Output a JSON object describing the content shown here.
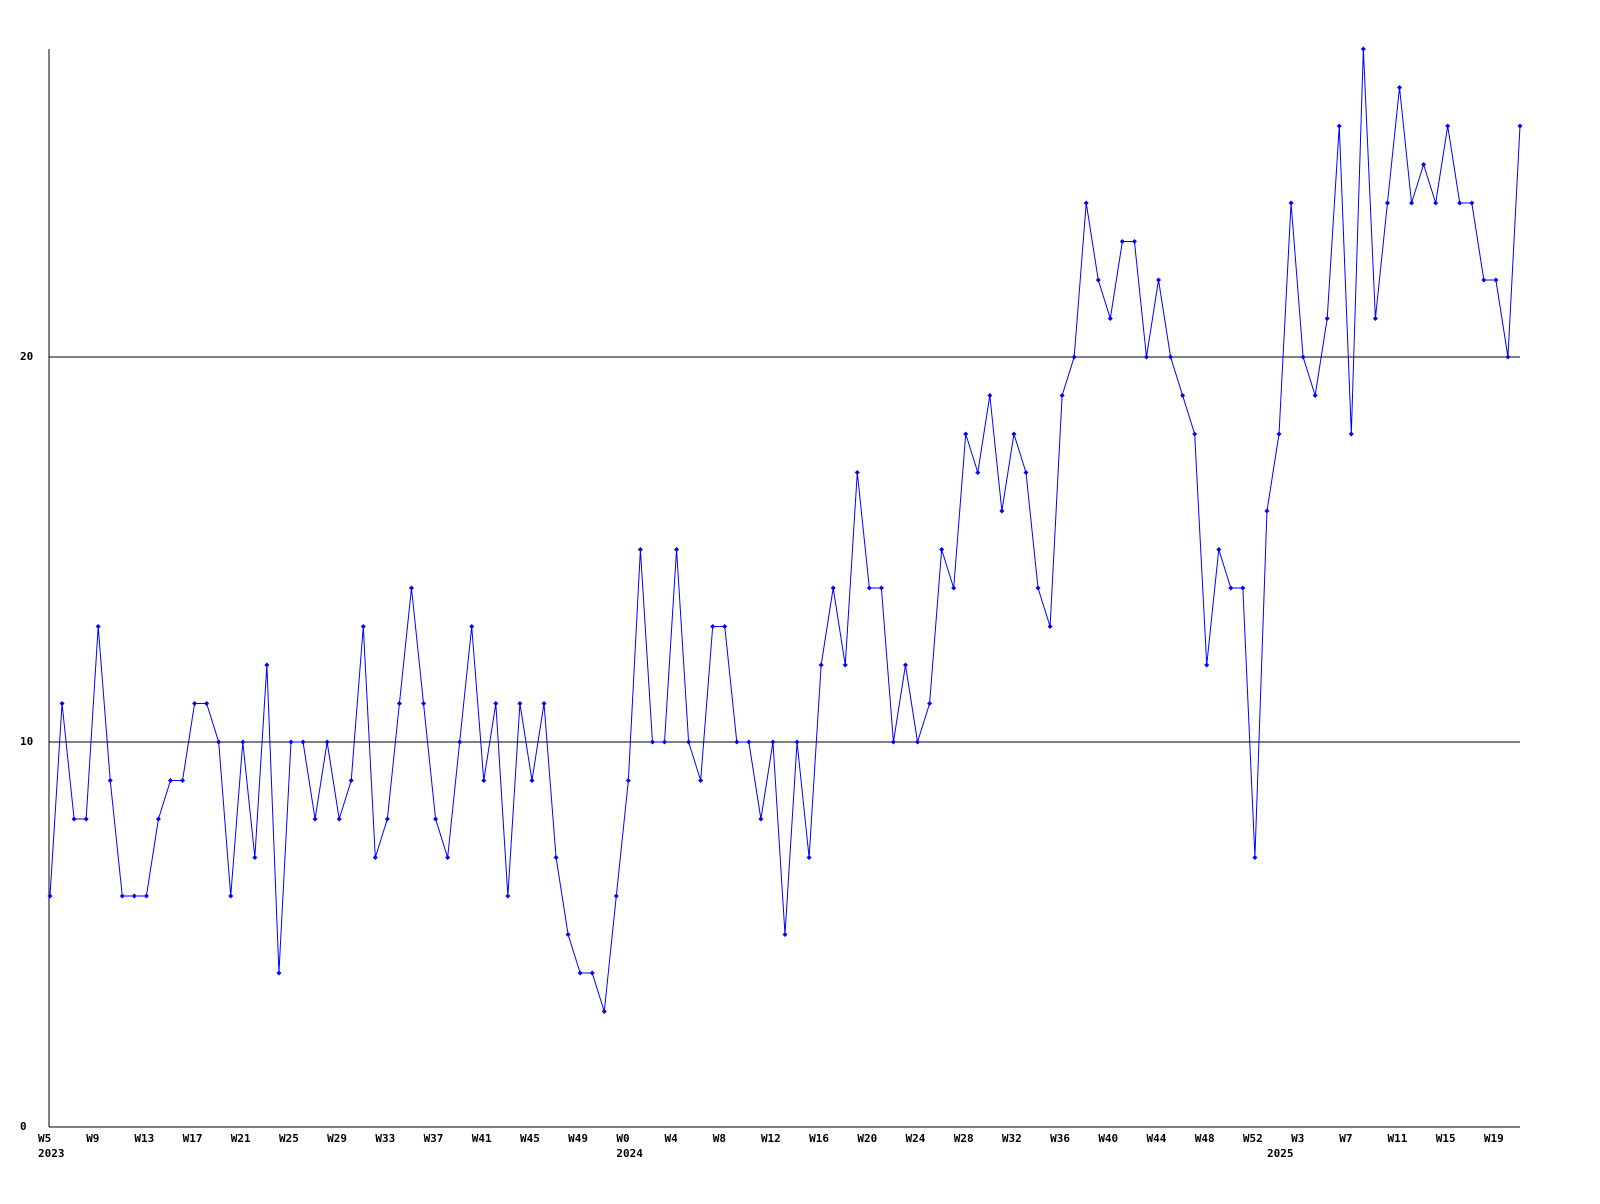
{
  "chart_data": {
    "type": "line",
    "categories": [
      "W5",
      null,
      null,
      null,
      "W9",
      null,
      null,
      null,
      "W13",
      null,
      null,
      null,
      "W17",
      null,
      null,
      null,
      "W21",
      null,
      null,
      null,
      "W25",
      null,
      null,
      null,
      "W29",
      null,
      null,
      null,
      "W33",
      null,
      null,
      null,
      "W37",
      null,
      null,
      null,
      "W41",
      null,
      null,
      null,
      "W45",
      null,
      null,
      null,
      "W49",
      null,
      null,
      null,
      "W0",
      null,
      null,
      null,
      "W4",
      null,
      null,
      null,
      "W8",
      null,
      null,
      null,
      "W12",
      null,
      null,
      null,
      "W16",
      null,
      null,
      null,
      "W20",
      null,
      null,
      null,
      "W24",
      null,
      null,
      null,
      "W28",
      null,
      null,
      null,
      "W32",
      null,
      null,
      null,
      "W36",
      null,
      null,
      null,
      "W40",
      null,
      null,
      null,
      "W44",
      null,
      null,
      null,
      "W48",
      null,
      null,
      null,
      "W52",
      null,
      null,
      null,
      "W3",
      null,
      null,
      null,
      "W7",
      null,
      null,
      null,
      "W11",
      null,
      null,
      null,
      "W15",
      null,
      null,
      null,
      "W19",
      null,
      null
    ],
    "category_groups": [
      "2023",
      null,
      null,
      null,
      null,
      null,
      null,
      null,
      null,
      null,
      null,
      null,
      null,
      null,
      null,
      null,
      null,
      null,
      null,
      null,
      null,
      null,
      null,
      null,
      null,
      null,
      null,
      null,
      null,
      null,
      null,
      null,
      null,
      null,
      null,
      null,
      null,
      null,
      null,
      null,
      null,
      null,
      null,
      null,
      null,
      null,
      null,
      null,
      "2024",
      null,
      null,
      null,
      null,
      null,
      null,
      null,
      null,
      null,
      null,
      null,
      null,
      null,
      null,
      null,
      null,
      null,
      null,
      null,
      null,
      null,
      null,
      null,
      null,
      null,
      null,
      null,
      null,
      null,
      null,
      null,
      null,
      null,
      null,
      null,
      null,
      null,
      null,
      null,
      null,
      null,
      null,
      null,
      null,
      null,
      null,
      null,
      null,
      null,
      null,
      null,
      null,
      null,
      "2025",
      null,
      null,
      null,
      null,
      null,
      null,
      null,
      null,
      null,
      null,
      null,
      null,
      null,
      null,
      null,
      null,
      null,
      null,
      null,
      null,
      null
    ],
    "series": [
      {
        "color": "#0000ff",
        "values": [
          6,
          11,
          8,
          8,
          13,
          9,
          6,
          6,
          6,
          8,
          9,
          9,
          11,
          11,
          10,
          6,
          10,
          7,
          12,
          4,
          10,
          10,
          8,
          10,
          8,
          9,
          13,
          7,
          8,
          11,
          14,
          11,
          8,
          7,
          10,
          13,
          9,
          11,
          6,
          11,
          9,
          11,
          7,
          5,
          4,
          4,
          3,
          6,
          9,
          15,
          10,
          10,
          15,
          10,
          9,
          13,
          13,
          10,
          10,
          8,
          10,
          5,
          10,
          7,
          12,
          14,
          12,
          17,
          14,
          14,
          10,
          12,
          10,
          11,
          15,
          14,
          18,
          17,
          19,
          16,
          18,
          17,
          14,
          13,
          19,
          20,
          24,
          22,
          21,
          23,
          23,
          20,
          22,
          20,
          19,
          18,
          12,
          15,
          14,
          14,
          7,
          16,
          18,
          24,
          20,
          19,
          21,
          26,
          18,
          28,
          21,
          24,
          27,
          24,
          25,
          24,
          26,
          24,
          24,
          22,
          22,
          20,
          26
        ]
      }
    ],
    "ylim": [
      0,
      28
    ],
    "yticks": [
      0,
      10,
      20
    ],
    "grid": true
  }
}
